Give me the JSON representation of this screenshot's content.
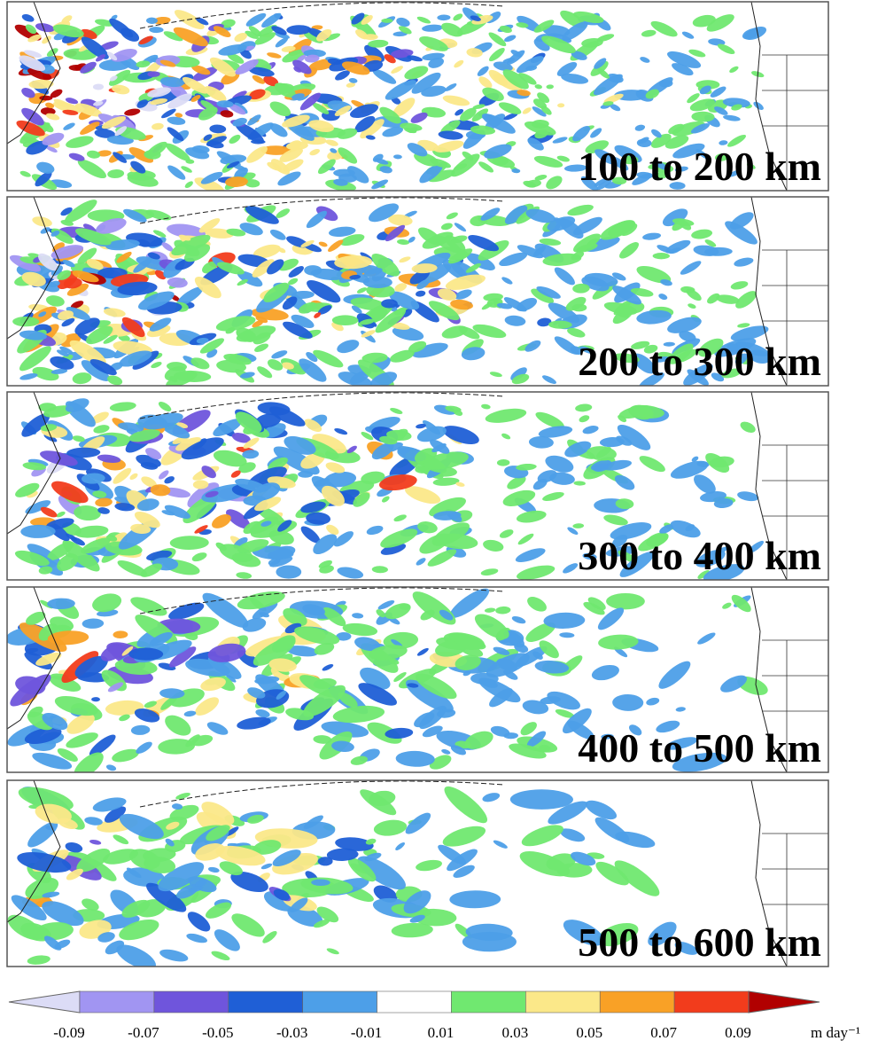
{
  "panels": [
    {
      "label": "100 to 200 km"
    },
    {
      "label": "200 to 300 km"
    },
    {
      "label": "300 to 400 km"
    },
    {
      "label": "400 to 500 km"
    },
    {
      "label": "500 to 600 km"
    }
  ],
  "colorbar": {
    "ticks": [
      -0.09,
      -0.07,
      -0.05,
      -0.03,
      -0.01,
      0.01,
      0.03,
      0.05,
      0.07,
      0.09
    ],
    "colors": [
      "#dcdcf6",
      "#a195f2",
      "#6f55dc",
      "#1f5fd6",
      "#4d9fe8",
      "#ffffff",
      "#70e870",
      "#fbe889",
      "#f9a126",
      "#f23c1c",
      "#b10000"
    ],
    "unit": "m day⁻¹"
  }
}
